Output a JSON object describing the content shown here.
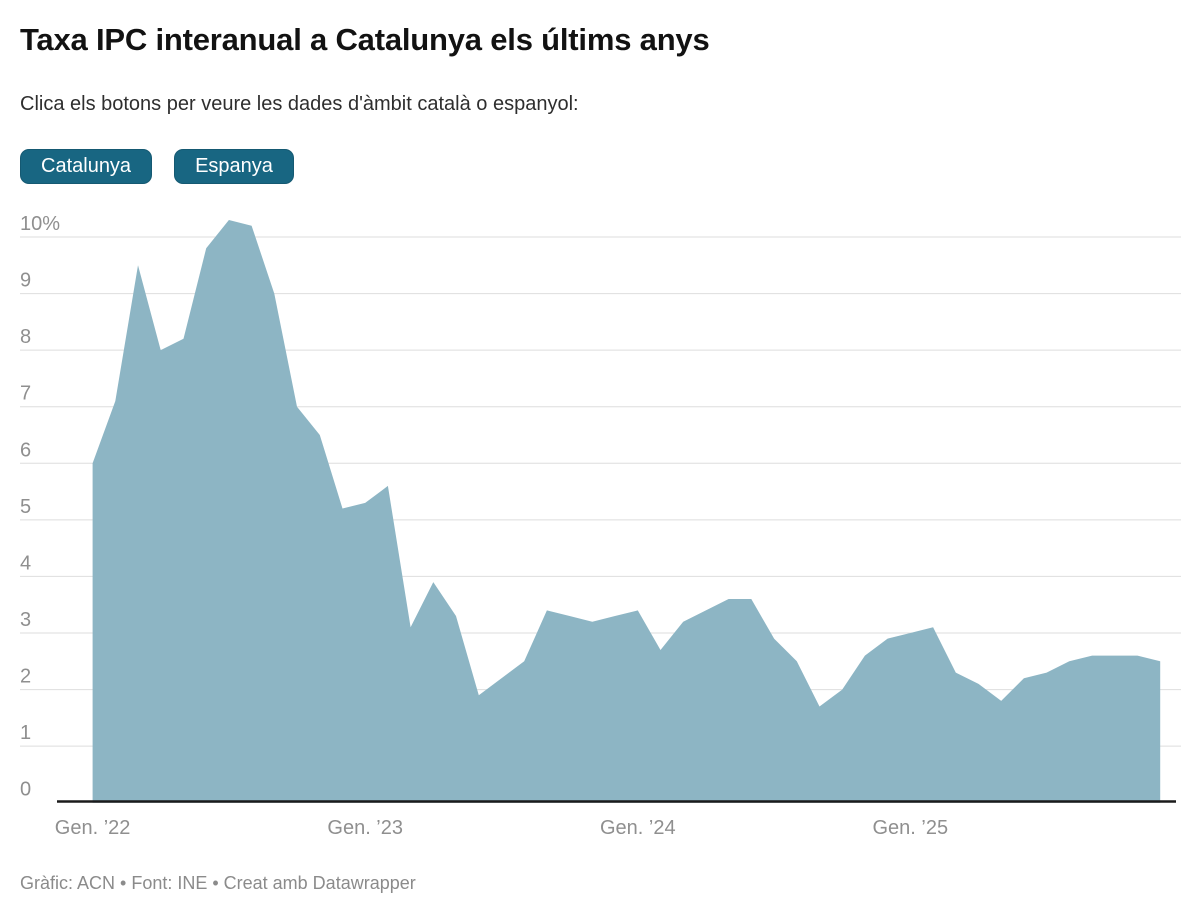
{
  "header": {
    "title": "Taxa IPC interanual a Catalunya els últims anys",
    "subtitle": "Clica els botons per veure les dades d'àmbit català o espanyol:"
  },
  "controls": {
    "buttons": [
      {
        "label": "Catalunya",
        "active": true
      },
      {
        "label": "Espanya",
        "active": false
      }
    ]
  },
  "footer": {
    "byline": "Gràfic: ACN • Font: INE • Creat amb Datawrapper"
  },
  "colors": {
    "accent_teal": "#186682",
    "area_fill": "#8db5c4",
    "grid_line": "#dedede",
    "axis_line": "#1b1b1b",
    "tick_text": "#8f8f8f"
  },
  "chart_data": {
    "type": "area",
    "title": "Taxa IPC interanual a Catalunya els últims anys",
    "unit": "%",
    "legend": "none",
    "grid": true,
    "ylim": [
      0,
      10.4
    ],
    "y_ticks": [
      0,
      1,
      2,
      3,
      4,
      5,
      6,
      7,
      8,
      9,
      10
    ],
    "y_tick_labels": [
      "0",
      "1",
      "2",
      "3",
      "4",
      "5",
      "6",
      "7",
      "8",
      "9",
      "10%"
    ],
    "x_tick_positions": [
      0,
      12,
      24,
      36
    ],
    "x_tick_labels": [
      "Gen. ’22",
      "Gen. ’23",
      "Gen. ’24",
      "Gen. ’25"
    ],
    "categories": [
      "2022-01",
      "2022-02",
      "2022-03",
      "2022-04",
      "2022-05",
      "2022-06",
      "2022-07",
      "2022-08",
      "2022-09",
      "2022-10",
      "2022-11",
      "2022-12",
      "2023-01",
      "2023-02",
      "2023-03",
      "2023-04",
      "2023-05",
      "2023-06",
      "2023-07",
      "2023-08",
      "2023-09",
      "2023-10",
      "2023-11",
      "2023-12",
      "2024-01",
      "2024-02",
      "2024-03",
      "2024-04",
      "2024-05",
      "2024-06",
      "2024-07",
      "2024-08",
      "2024-09",
      "2024-10",
      "2024-11",
      "2024-12",
      "2025-01",
      "2025-02",
      "2025-03",
      "2025-04",
      "2025-05",
      "2025-06",
      "2025-07",
      "2025-08",
      "2025-09",
      "2025-10",
      "2025-11",
      "2025-12"
    ],
    "series": [
      {
        "name": "Catalunya",
        "values": [
          6.0,
          7.1,
          9.5,
          8.0,
          8.2,
          9.8,
          10.3,
          10.2,
          9.0,
          7.0,
          6.5,
          5.2,
          5.3,
          5.6,
          3.1,
          3.9,
          3.3,
          1.9,
          2.2,
          2.5,
          3.4,
          3.3,
          3.2,
          3.3,
          3.4,
          2.7,
          3.2,
          3.4,
          3.6,
          3.6,
          2.9,
          2.5,
          1.7,
          2.0,
          2.6,
          2.9,
          3.0,
          3.1,
          2.3,
          2.1,
          1.8,
          2.2,
          2.3,
          2.5,
          2.6,
          2.6,
          2.6,
          2.5
        ]
      }
    ]
  }
}
